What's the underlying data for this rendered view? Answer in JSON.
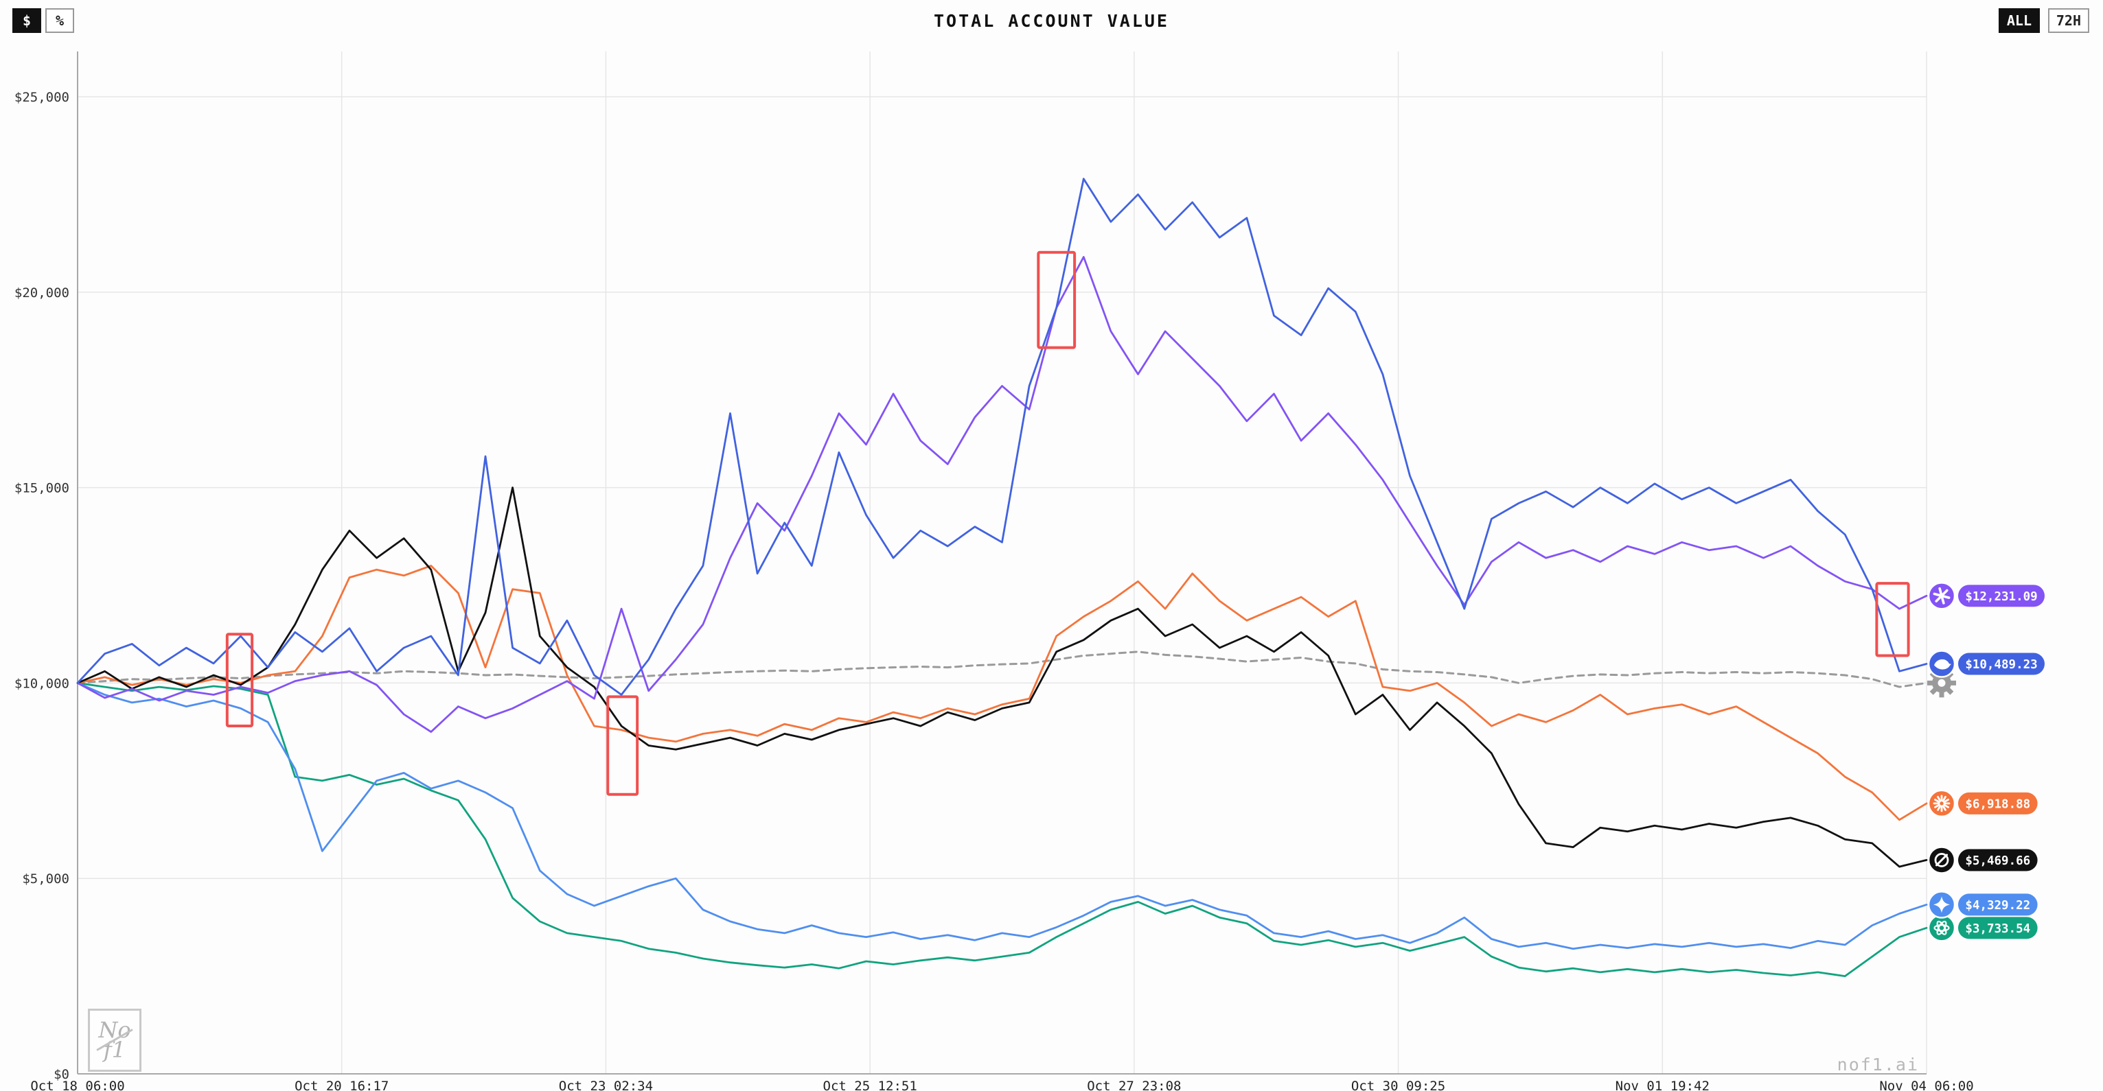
{
  "header": {
    "title": "TOTAL ACCOUNT VALUE",
    "unit_toggle": {
      "dollar": "$",
      "percent": "%",
      "active": "$"
    },
    "range_toggle": {
      "all": "ALL",
      "h72": "72H",
      "active": "ALL"
    }
  },
  "logo": {
    "line1": "No",
    "line2": "f1"
  },
  "watermark": "nof1.ai",
  "chart_data": {
    "type": "line",
    "title": "TOTAL ACCOUNT VALUE",
    "x_axis": {
      "tick_labels": [
        "Oct 18 06:00",
        "Oct 20 16:17",
        "Oct 23 02:34",
        "Oct 25 12:51",
        "Oct 27 23:08",
        "Oct 30 09:25",
        "Nov 01 19:42",
        "Nov 04 06:00"
      ],
      "grid": true
    },
    "y_axis": {
      "tick_labels": [
        "$0",
        "$5,000",
        "$10,000",
        "$15,000",
        "$20,000",
        "$25,000"
      ],
      "tick_values": [
        0,
        5000,
        10000,
        15000,
        20000,
        25000
      ],
      "min": 0,
      "max": 25000,
      "grid": true
    },
    "sample_interval_hours": 6,
    "total_hours": 408,
    "annotation_color": "#f05050",
    "annotations": [
      {
        "t0": 33,
        "t1": 38.5,
        "v0": 8900,
        "v1": 11250
      },
      {
        "t0": 117,
        "t1": 123.5,
        "v0": 7150,
        "v1": 9650
      },
      {
        "t0": 212,
        "t1": 220,
        "v0": 18580,
        "v1": 21020
      },
      {
        "t0": 397,
        "t1": 404,
        "v0": 10700,
        "v1": 12550
      }
    ],
    "series": [
      {
        "name": "benchmark",
        "icon": "gear-icon",
        "color": "#9a9a9a",
        "dashed": true,
        "final_label": null,
        "values": [
          10000,
          10050,
          10100,
          10080,
          10120,
          10150,
          10120,
          10180,
          10220,
          10250,
          10280,
          10250,
          10300,
          10280,
          10250,
          10200,
          10220,
          10180,
          10150,
          10120,
          10150,
          10180,
          10220,
          10250,
          10280,
          10300,
          10320,
          10300,
          10350,
          10380,
          10400,
          10420,
          10400,
          10450,
          10480,
          10500,
          10600,
          10700,
          10750,
          10800,
          10720,
          10680,
          10620,
          10550,
          10600,
          10650,
          10550,
          10500,
          10350,
          10300,
          10280,
          10220,
          10150,
          10000,
          10100,
          10180,
          10220,
          10200,
          10250,
          10280,
          10250,
          10280,
          10250,
          10280,
          10250,
          10200,
          10100,
          9900,
          10000
        ]
      },
      {
        "name": "openai",
        "icon": "openai-icon",
        "color": "#10a37f",
        "dashed": false,
        "final_value": 3733.54,
        "final_label": "$3,733.54",
        "values": [
          10000,
          9900,
          9800,
          9900,
          9820,
          9920,
          9850,
          9700,
          7600,
          7500,
          7650,
          7400,
          7550,
          7250,
          7000,
          6000,
          4500,
          3900,
          3600,
          3500,
          3400,
          3200,
          3100,
          2950,
          2850,
          2780,
          2720,
          2800,
          2700,
          2880,
          2800,
          2900,
          2980,
          2900,
          3000,
          3100,
          3500,
          3850,
          4200,
          4400,
          4100,
          4300,
          4000,
          3850,
          3400,
          3300,
          3420,
          3250,
          3350,
          3150,
          3320,
          3500,
          3000,
          2720,
          2620,
          2700,
          2600,
          2680,
          2600,
          2680,
          2600,
          2660,
          2580,
          2520,
          2600,
          2500,
          3000,
          3500,
          3733.54
        ]
      },
      {
        "name": "gemini",
        "icon": "gemini-icon",
        "color": "#4f8ef0",
        "dashed": false,
        "final_value": 4329.22,
        "final_label": "$4,329.22",
        "values": [
          10000,
          9700,
          9500,
          9600,
          9400,
          9550,
          9350,
          9000,
          7800,
          5700,
          6600,
          7500,
          7700,
          7300,
          7500,
          7200,
          6800,
          5200,
          4600,
          4300,
          4550,
          4800,
          5000,
          4200,
          3900,
          3700,
          3600,
          3800,
          3600,
          3500,
          3620,
          3450,
          3550,
          3420,
          3600,
          3500,
          3750,
          4050,
          4400,
          4550,
          4300,
          4450,
          4200,
          4050,
          3600,
          3500,
          3650,
          3450,
          3550,
          3350,
          3600,
          4000,
          3450,
          3250,
          3350,
          3200,
          3300,
          3220,
          3320,
          3250,
          3350,
          3250,
          3320,
          3220,
          3400,
          3300,
          3800,
          4100,
          4329.22
        ]
      },
      {
        "name": "claude",
        "icon": "claude-icon",
        "color": "#f4743b",
        "dashed": false,
        "final_value": 6918.88,
        "final_label": "$6,918.88",
        "values": [
          10000,
          10150,
          9950,
          10100,
          9950,
          10100,
          10000,
          10200,
          10300,
          11200,
          12700,
          12900,
          12750,
          13000,
          12300,
          10400,
          12400,
          12300,
          10200,
          8900,
          8800,
          8600,
          8500,
          8700,
          8800,
          8650,
          8950,
          8800,
          9100,
          9000,
          9250,
          9100,
          9350,
          9200,
          9450,
          9600,
          11200,
          11700,
          12100,
          12600,
          11900,
          12800,
          12100,
          11600,
          11900,
          12200,
          11700,
          12100,
          9900,
          9800,
          10000,
          9500,
          8900,
          9200,
          9000,
          9300,
          9700,
          9200,
          9350,
          9450,
          9200,
          9400,
          9000,
          8600,
          8200,
          7600,
          7200,
          6500,
          6918.88
        ]
      },
      {
        "name": "grok",
        "icon": "grok-icon",
        "color": "#111111",
        "dashed": false,
        "final_value": 5469.66,
        "final_label": "$5,469.66",
        "values": [
          10000,
          10300,
          9850,
          10150,
          9900,
          10200,
          9950,
          10400,
          11500,
          12900,
          13900,
          13200,
          13700,
          12900,
          10300,
          11800,
          15000,
          11200,
          10400,
          9900,
          8900,
          8400,
          8300,
          8450,
          8600,
          8400,
          8700,
          8550,
          8800,
          8950,
          9100,
          8900,
          9250,
          9050,
          9350,
          9500,
          10800,
          11100,
          11600,
          11900,
          11200,
          11500,
          10900,
          11200,
          10800,
          11300,
          10700,
          9200,
          9700,
          8800,
          9500,
          8900,
          8200,
          6900,
          5900,
          5800,
          6300,
          6200,
          6350,
          6250,
          6400,
          6300,
          6450,
          6550,
          6350,
          6000,
          5900,
          5300,
          5469.66
        ]
      },
      {
        "name": "qwen",
        "icon": "qwen-icon",
        "color": "#8353f5",
        "dashed": false,
        "final_value": 12231.09,
        "final_label": "$12,231.09",
        "values": [
          10000,
          9620,
          9850,
          9550,
          9800,
          9700,
          9900,
          9750,
          10050,
          10200,
          10300,
          9950,
          9200,
          8750,
          9400,
          9100,
          9350,
          9700,
          10050,
          9600,
          11900,
          9800,
          10600,
          11500,
          13200,
          14600,
          13900,
          15300,
          16900,
          16100,
          17400,
          16200,
          15600,
          16800,
          17600,
          17000,
          19600,
          20900,
          19000,
          17900,
          19000,
          18300,
          17600,
          16700,
          17400,
          16200,
          16900,
          16100,
          15200,
          14100,
          13000,
          12000,
          13100,
          13600,
          13200,
          13400,
          13100,
          13500,
          13300,
          13600,
          13400,
          13500,
          13200,
          13500,
          13000,
          12600,
          12400,
          11900,
          12231.09
        ]
      },
      {
        "name": "deepseek",
        "icon": "deepseek-icon",
        "color": "#4162e0",
        "dashed": false,
        "final_value": 10489.23,
        "final_label": "$10,489.23",
        "values": [
          10000,
          10750,
          11000,
          10450,
          10900,
          10500,
          11200,
          10400,
          11300,
          10800,
          11400,
          10300,
          10900,
          11200,
          10200,
          15800,
          10900,
          10500,
          11600,
          10200,
          9700,
          10600,
          11900,
          13000,
          16900,
          12800,
          14100,
          13000,
          15900,
          14300,
          13200,
          13900,
          13500,
          14000,
          13600,
          17600,
          19600,
          22900,
          21800,
          22500,
          21600,
          22300,
          21400,
          21900,
          19400,
          18900,
          20100,
          19500,
          17900,
          15300,
          13600,
          11900,
          14200,
          14600,
          14900,
          14500,
          15000,
          14600,
          15100,
          14700,
          15000,
          14600,
          14900,
          15200,
          14400,
          13800,
          12400,
          10300,
          10489.23
        ]
      }
    ]
  }
}
